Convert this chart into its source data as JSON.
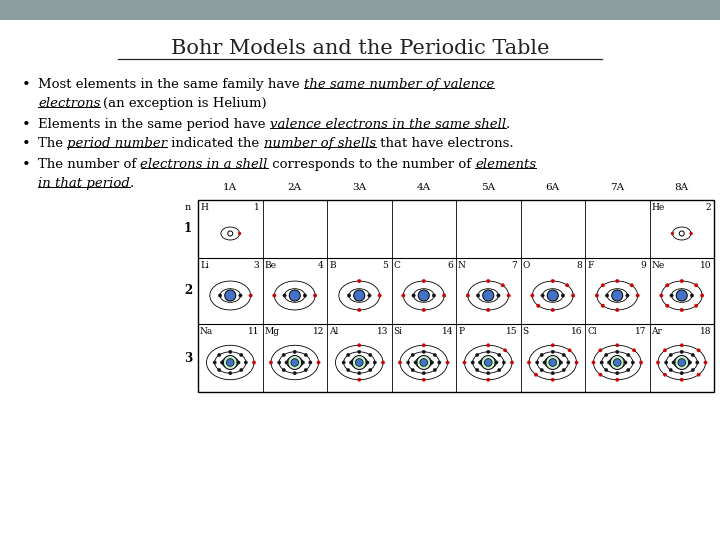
{
  "title": "Bohr Models and the Periodic Table",
  "header_color": "#8a9e9e",
  "groups": [
    "1A",
    "2A",
    "3A",
    "4A",
    "5A",
    "6A",
    "7A",
    "8A"
  ],
  "elements": {
    "H": {
      "period": 1,
      "group_i": 0,
      "num": 1,
      "shells": [
        1
      ]
    },
    "He": {
      "period": 1,
      "group_i": 7,
      "num": 2,
      "shells": [
        2
      ]
    },
    "Li": {
      "period": 2,
      "group_i": 0,
      "num": 3,
      "shells": [
        2,
        1
      ]
    },
    "Be": {
      "period": 2,
      "group_i": 1,
      "num": 4,
      "shells": [
        2,
        2
      ]
    },
    "B": {
      "period": 2,
      "group_i": 2,
      "num": 5,
      "shells": [
        2,
        3
      ]
    },
    "C": {
      "period": 2,
      "group_i": 3,
      "num": 6,
      "shells": [
        2,
        4
      ]
    },
    "N": {
      "period": 2,
      "group_i": 4,
      "num": 7,
      "shells": [
        2,
        5
      ]
    },
    "O": {
      "period": 2,
      "group_i": 5,
      "num": 8,
      "shells": [
        2,
        6
      ]
    },
    "F": {
      "period": 2,
      "group_i": 6,
      "num": 9,
      "shells": [
        2,
        7
      ]
    },
    "Ne": {
      "period": 2,
      "group_i": 7,
      "num": 10,
      "shells": [
        2,
        8
      ]
    },
    "Na": {
      "period": 3,
      "group_i": 0,
      "num": 11,
      "shells": [
        2,
        8,
        1
      ]
    },
    "Mg": {
      "period": 3,
      "group_i": 1,
      "num": 12,
      "shells": [
        2,
        8,
        2
      ]
    },
    "Al": {
      "period": 3,
      "group_i": 2,
      "num": 13,
      "shells": [
        2,
        8,
        3
      ]
    },
    "Si": {
      "period": 3,
      "group_i": 3,
      "num": 14,
      "shells": [
        2,
        8,
        4
      ]
    },
    "P": {
      "period": 3,
      "group_i": 4,
      "num": 15,
      "shells": [
        2,
        8,
        5
      ]
    },
    "S": {
      "period": 3,
      "group_i": 5,
      "num": 16,
      "shells": [
        2,
        8,
        6
      ]
    },
    "Cl": {
      "period": 3,
      "group_i": 6,
      "num": 17,
      "shells": [
        2,
        8,
        7
      ]
    },
    "Ar": {
      "period": 3,
      "group_i": 7,
      "num": 18,
      "shells": [
        2,
        8,
        8
      ]
    }
  },
  "nucleus_color_p1": "#ffffff",
  "nucleus_color_p2": "#4472c4",
  "nucleus_color_p3_outer": "#c6efce",
  "nucleus_color_p3_inner": "#4472c4",
  "electron_red": "#cc0000",
  "electron_black": "#111111",
  "shell_color": "#000000"
}
